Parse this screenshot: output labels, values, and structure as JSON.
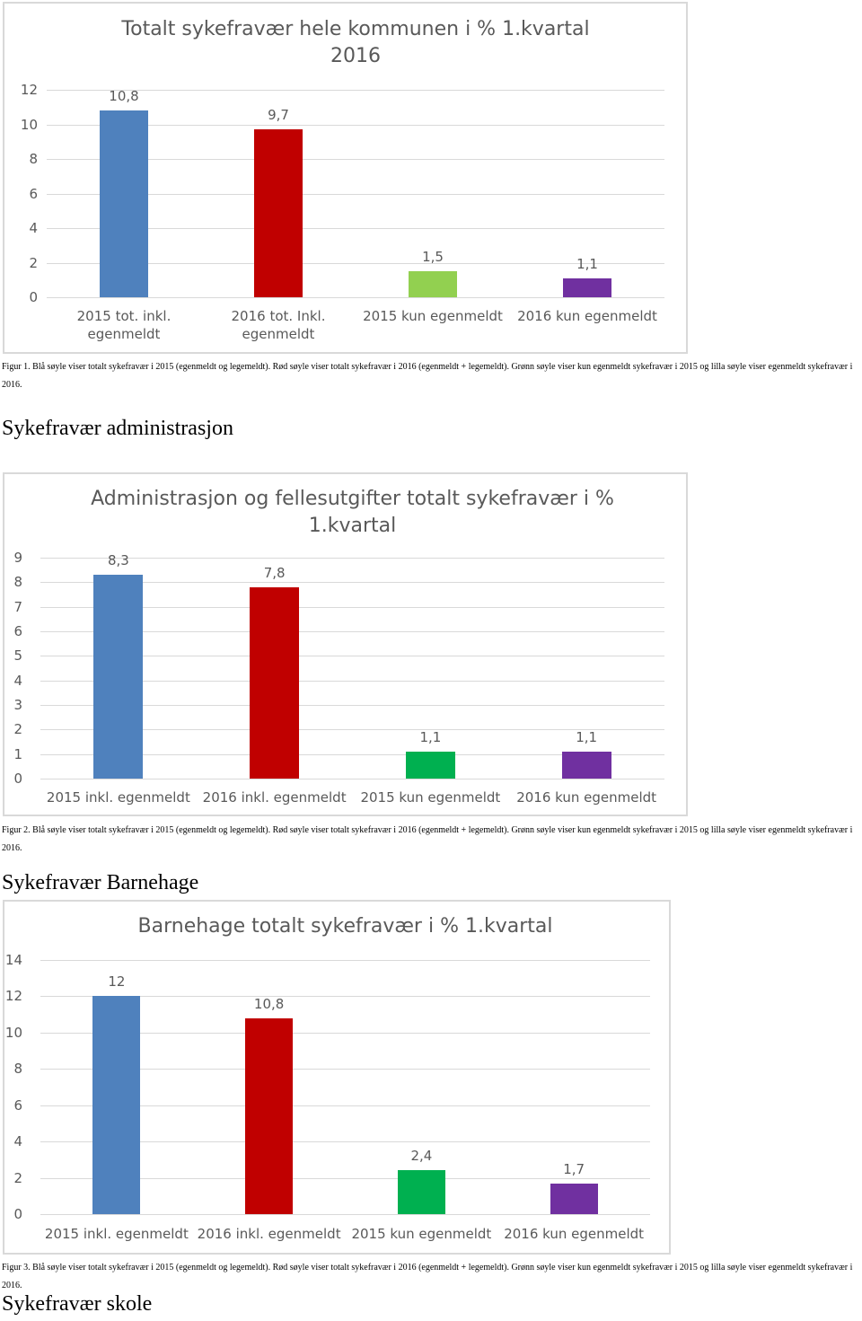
{
  "chart_data": [
    {
      "type": "bar",
      "title": "Totalt sykefravær hele kommunen i % 1.kvartal 2016",
      "categories": [
        "2015 tot. inkl. egenmeldt",
        "2016 tot. Inkl. egenmeldt",
        "2015 kun egenmeldt",
        "2016 kun egenmeldt"
      ],
      "values": [
        10.8,
        9.7,
        1.5,
        1.1
      ],
      "value_labels": [
        "10,8",
        "9,7",
        "1,5",
        "1,1"
      ],
      "colors": [
        "#4f81bd",
        "#c00000",
        "#92d050",
        "#7030a0"
      ],
      "ylim": [
        0,
        12
      ],
      "yticks": [
        0,
        2,
        4,
        6,
        8,
        10,
        12
      ],
      "grid": true
    },
    {
      "type": "bar",
      "title": "Administrasjon og fellesutgifter totalt sykefravær i % 1.kvartal",
      "categories": [
        "2015 inkl. egenmeldt",
        "2016 inkl. egenmeldt",
        "2015 kun egenmeldt",
        "2016 kun egenmeldt"
      ],
      "values": [
        8.3,
        7.8,
        1.1,
        1.1
      ],
      "value_labels": [
        "8,3",
        "7,8",
        "1,1",
        "1,1"
      ],
      "colors": [
        "#4f81bd",
        "#c00000",
        "#00b050",
        "#7030a0"
      ],
      "ylim": [
        0,
        9
      ],
      "yticks": [
        0,
        1,
        2,
        3,
        4,
        5,
        6,
        7,
        8,
        9
      ],
      "grid": true
    },
    {
      "type": "bar",
      "title": "Barnehage totalt sykefravær i % 1.kvartal",
      "categories": [
        "2015 inkl. egenmeldt",
        "2016 inkl. egenmeldt",
        "2015 kun egenmeldt",
        "2016 kun egenmeldt"
      ],
      "values": [
        12,
        10.8,
        2.4,
        1.7
      ],
      "value_labels": [
        "12",
        "10,8",
        "2,4",
        "1,7"
      ],
      "colors": [
        "#4f81bd",
        "#c00000",
        "#00b050",
        "#7030a0"
      ],
      "ylim": [
        0,
        14
      ],
      "yticks": [
        0,
        2,
        4,
        6,
        8,
        10,
        12,
        14
      ],
      "grid": true
    }
  ],
  "captions": [
    "Figur 1. Blå søyle viser totalt sykefravær i 2015 (egenmeldt og legemeldt). Rød søyle viser totalt sykefravær i 2016 (egenmeldt + legemeldt). Grønn søyle viser kun egenmeldt sykefravær i 2015 og lilla søyle viser egenmeldt sykefravær i 2016.",
    "Figur 2. Blå søyle viser totalt sykefravær i 2015 (egenmeldt og legemeldt). Rød søyle viser totalt sykefravær i 2016 (egenmeldt + legemeldt). Grønn søyle viser kun egenmeldt sykefravær i 2015 og lilla søyle viser egenmeldt sykefravær i 2016.",
    "Figur 3. Blå søyle viser totalt sykefravær i 2015 (egenmeldt og legemeldt). Rød søyle viser totalt sykefravær i 2016 (egenmeldt + legemeldt). Grønn søyle viser kun egenmeldt sykefravær i 2015 og lilla søyle viser egenmeldt sykefravær i 2016."
  ],
  "headings": [
    "Sykefravær administrasjon",
    "Sykefravær Barnehage",
    "Sykefravær skole"
  ]
}
